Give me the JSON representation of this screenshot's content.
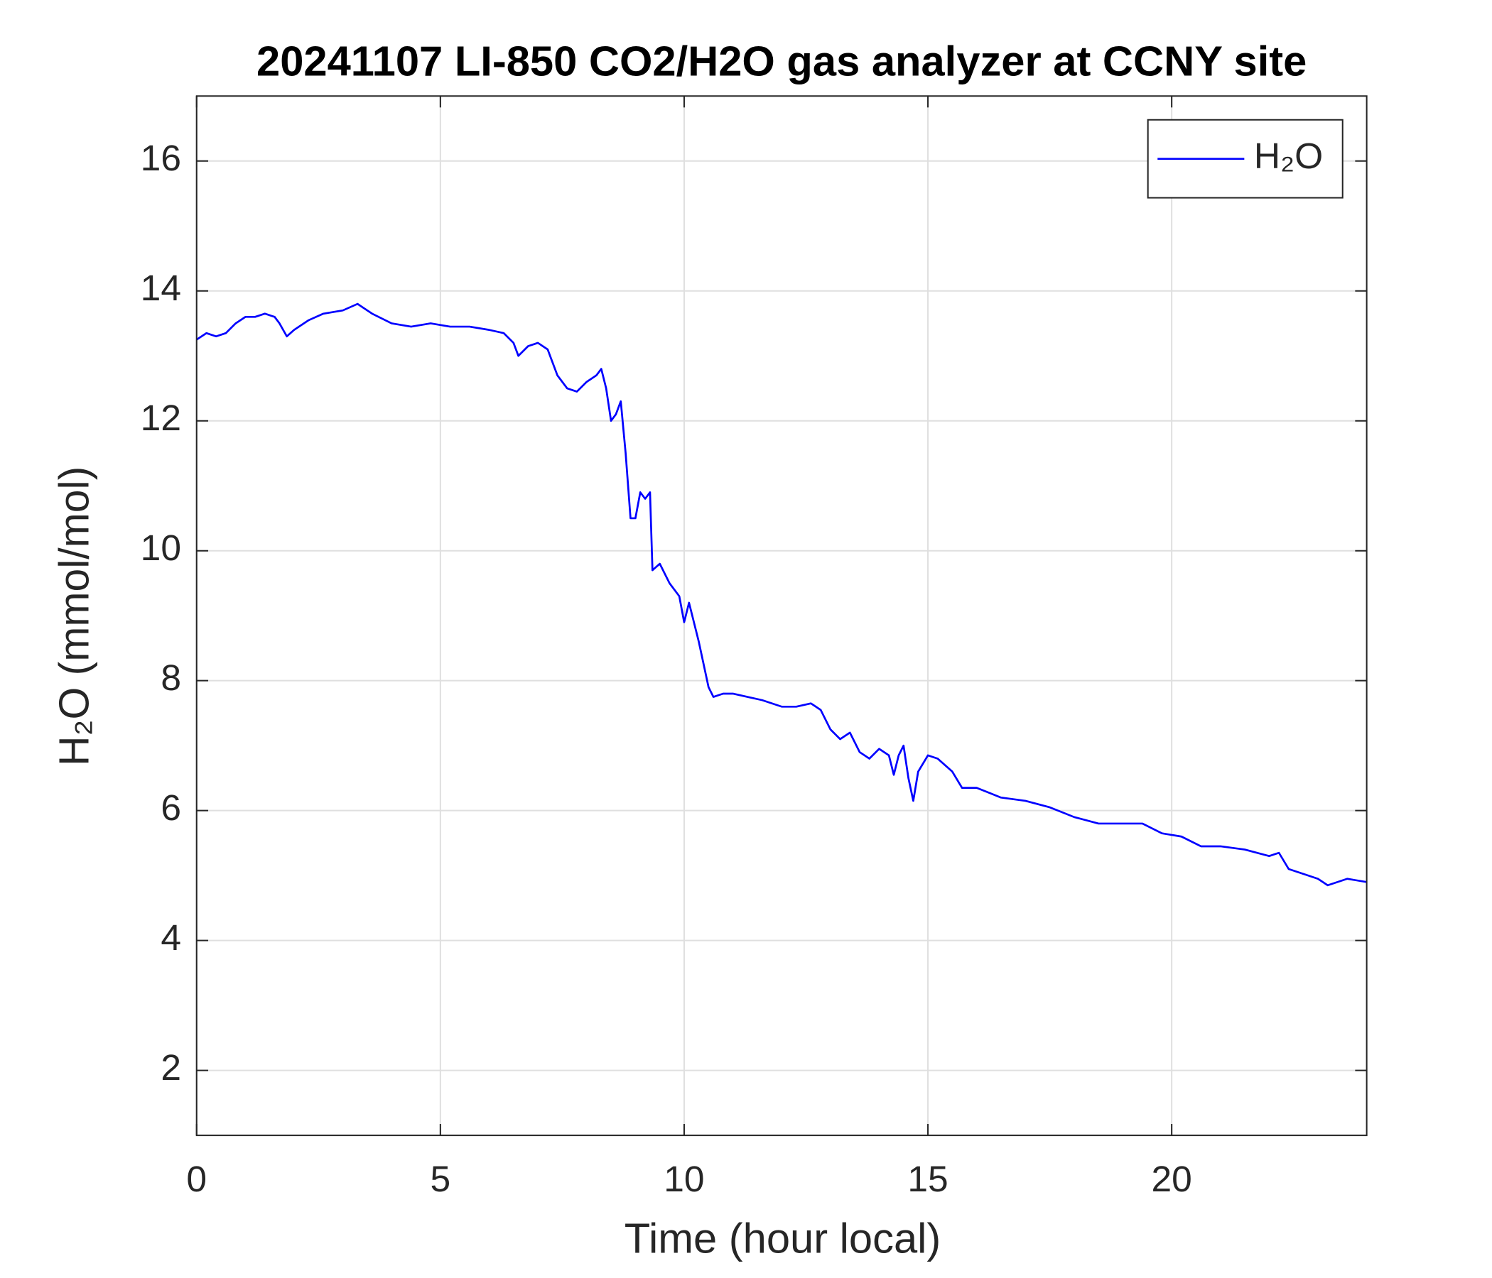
{
  "chart_data": {
    "type": "line",
    "title": "20241107 LI-850 CO2/H2O gas analyzer at CCNY site",
    "xlabel": "Time (hour local)",
    "ylabel": "H₂O (mmol/mol)",
    "x": [
      0,
      0.2,
      0.4,
      0.6,
      0.8,
      1.0,
      1.2,
      1.4,
      1.6,
      1.7,
      1.85,
      2.0,
      2.3,
      2.6,
      3.0,
      3.3,
      3.6,
      4.0,
      4.4,
      4.8,
      5.2,
      5.6,
      6.0,
      6.3,
      6.5,
      6.6,
      6.8,
      7.0,
      7.2,
      7.3,
      7.4,
      7.6,
      7.8,
      8.0,
      8.2,
      8.3,
      8.4,
      8.5,
      8.6,
      8.7,
      8.8,
      8.9,
      9.0,
      9.1,
      9.2,
      9.3,
      9.35,
      9.5,
      9.7,
      9.9,
      10.0,
      10.1,
      10.3,
      10.5,
      10.6,
      10.8,
      11.0,
      11.3,
      11.6,
      12.0,
      12.3,
      12.6,
      12.8,
      13.0,
      13.2,
      13.4,
      13.6,
      13.8,
      14.0,
      14.2,
      14.3,
      14.4,
      14.5,
      14.6,
      14.7,
      14.8,
      15.0,
      15.2,
      15.5,
      15.7,
      16.0,
      16.5,
      17.0,
      17.5,
      18.0,
      18.5,
      19.0,
      19.4,
      19.8,
      20.2,
      20.6,
      21.0,
      21.5,
      22.0,
      22.2,
      22.4,
      22.8,
      23.0,
      23.2,
      23.6,
      24.0
    ],
    "series": [
      {
        "name": "H₂O",
        "color": "#0000ff",
        "values": [
          13.25,
          13.35,
          13.3,
          13.35,
          13.5,
          13.6,
          13.6,
          13.65,
          13.6,
          13.5,
          13.3,
          13.4,
          13.55,
          13.65,
          13.7,
          13.8,
          13.65,
          13.5,
          13.45,
          13.5,
          13.45,
          13.45,
          13.4,
          13.35,
          13.2,
          13.0,
          13.15,
          13.2,
          13.1,
          12.9,
          12.7,
          12.5,
          12.45,
          12.6,
          12.7,
          12.8,
          12.5,
          12.0,
          12.1,
          12.3,
          11.5,
          10.5,
          10.5,
          10.9,
          10.8,
          10.9,
          9.7,
          9.8,
          9.5,
          9.3,
          8.9,
          9.2,
          8.6,
          7.9,
          7.75,
          7.8,
          7.8,
          7.75,
          7.7,
          7.6,
          7.6,
          7.65,
          7.55,
          7.25,
          7.1,
          7.2,
          6.9,
          6.8,
          6.95,
          6.85,
          6.55,
          6.85,
          7.0,
          6.5,
          6.15,
          6.6,
          6.85,
          6.8,
          6.6,
          6.35,
          6.35,
          6.2,
          6.15,
          6.05,
          5.9,
          5.8,
          5.8,
          5.8,
          5.65,
          5.6,
          5.45,
          5.45,
          5.4,
          5.3,
          5.35,
          5.1,
          5.0,
          4.95,
          4.85,
          4.95,
          4.9
        ]
      }
    ],
    "xlim": [
      0,
      24
    ],
    "xticks": [
      0,
      5,
      10,
      15,
      20
    ],
    "ylim": [
      1,
      17
    ],
    "yticks": [
      2,
      4,
      6,
      8,
      10,
      12,
      14,
      16
    ],
    "grid": true,
    "legend": "northeast"
  }
}
